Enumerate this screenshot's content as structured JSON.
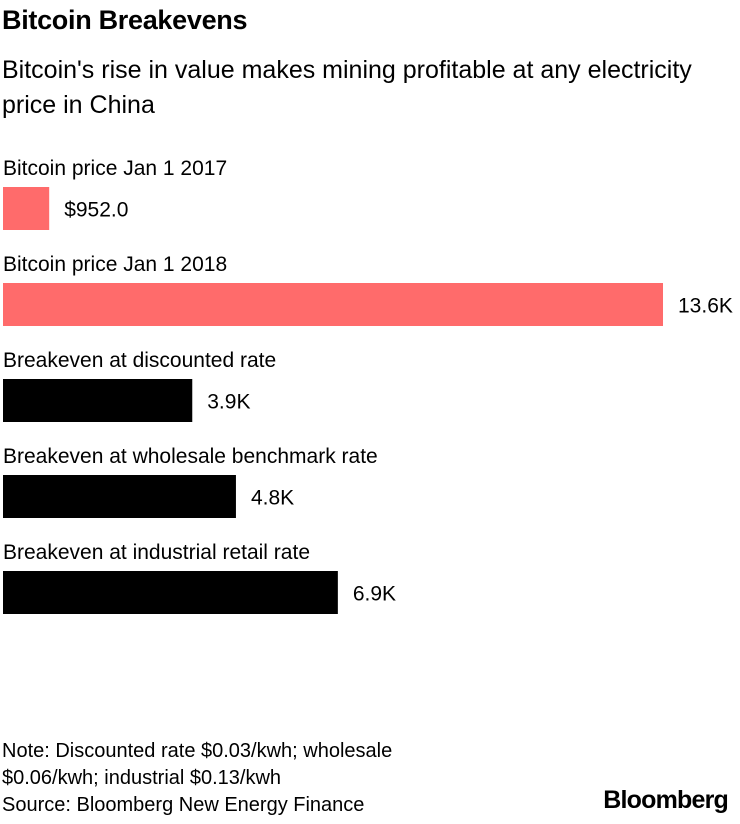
{
  "header": {
    "title": "Bitcoin Breakevens",
    "subtitle": "Bitcoin's rise in value makes mining profitable at any electricity price in China"
  },
  "chart_data": {
    "type": "bar",
    "orientation": "horizontal",
    "categories": [
      "Bitcoin price Jan 1 2017",
      "Bitcoin price Jan 1 2018",
      "Breakeven at discounted rate",
      "Breakeven at wholesale benchmark rate",
      "Breakeven at industrial retail rate"
    ],
    "values": [
      952.0,
      13600,
      3900,
      4800,
      6900
    ],
    "value_labels": [
      "$952.0",
      "13.6K",
      "3.9K",
      "4.8K",
      "6.9K"
    ],
    "colors": [
      "#ff6b6b",
      "#ff6b6b",
      "#000000",
      "#000000",
      "#000000"
    ],
    "xlim": [
      0,
      13600
    ],
    "grid": false,
    "legend": "none"
  },
  "footer": {
    "note_line1": "Note: Discounted rate $0.03/kwh; wholesale",
    "note_line2": "$0.06/kwh; industrial $0.13/kwh",
    "source": "Source: Bloomberg New Energy Finance",
    "brand": "Bloomberg"
  }
}
